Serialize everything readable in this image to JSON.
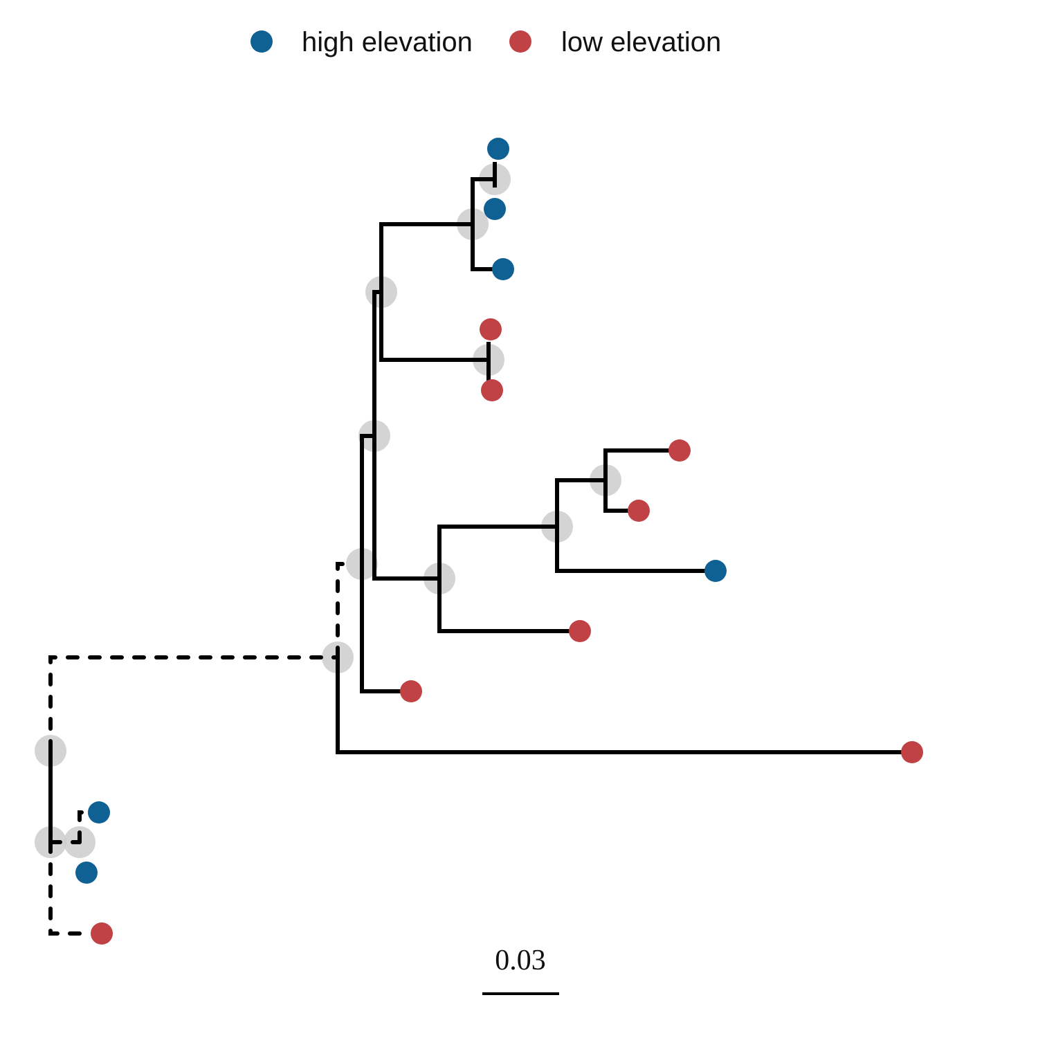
{
  "legend": {
    "items": [
      {
        "label": "high elevation",
        "color": "#0f6193"
      },
      {
        "label": "low elevation",
        "color": "#c04244"
      }
    ]
  },
  "scale_bar": {
    "label": "0.03",
    "length": 0.03
  },
  "colors": {
    "high": "#0f6193",
    "low": "#c04244",
    "branch": "#000000",
    "node_halo": "#cccccc"
  },
  "tree": {
    "type": "rooted phylogenetic tree (rectangular)",
    "internal_branch_style_near_root": "dashed",
    "tips": [
      {
        "group": "high"
      },
      {
        "group": "high"
      },
      {
        "group": "high"
      },
      {
        "group": "low"
      },
      {
        "group": "low"
      },
      {
        "group": "low"
      },
      {
        "group": "low"
      },
      {
        "group": "high"
      },
      {
        "group": "low"
      },
      {
        "group": "low"
      },
      {
        "group": "low"
      },
      {
        "group": "high"
      },
      {
        "group": "high"
      },
      {
        "group": "low"
      }
    ]
  }
}
